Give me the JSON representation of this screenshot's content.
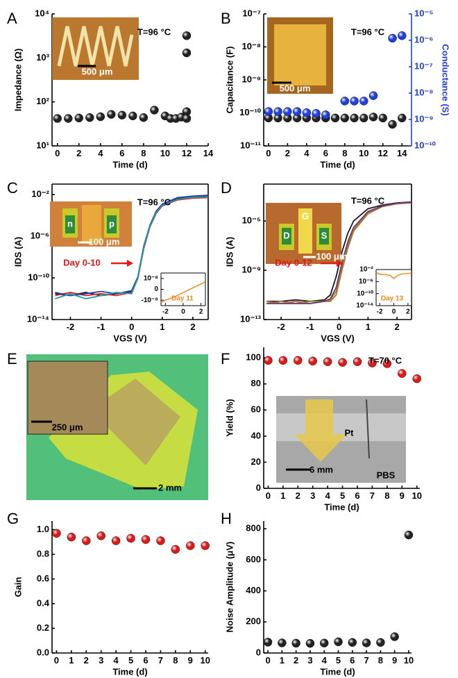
{
  "chart_data": [
    {
      "type": "scatter",
      "panel_label": "A",
      "xlabel": "Time (d)",
      "ylabel": "Impedance (Ω)",
      "annotations": [
        "T=96 °C",
        "500 μm"
      ],
      "log_y": true,
      "xlim": [
        -0.5,
        14
      ],
      "xticks": [
        0,
        2,
        4,
        6,
        8,
        10,
        12,
        14
      ],
      "ylim": [
        10,
        10000
      ],
      "yticks": [
        {
          "value": 10,
          "label": "10¹"
        },
        {
          "value": 100,
          "label": "10²"
        },
        {
          "value": 1000,
          "label": "10³"
        },
        {
          "value": 10000,
          "label": "10⁴"
        }
      ],
      "series": [
        {
          "color": "#222222",
          "x": [
            0,
            1,
            2,
            3,
            4,
            5,
            6,
            7,
            8,
            9,
            10,
            10.5,
            11,
            11.5,
            12,
            12,
            12,
            12
          ],
          "values": [
            42,
            42,
            43,
            44,
            46,
            52,
            50,
            48,
            44,
            65,
            48,
            42,
            42,
            45,
            60,
            42,
            3200,
            1300
          ]
        }
      ]
    },
    {
      "type": "scatter",
      "panel_label": "B",
      "xlabel": "Time (d)",
      "ylabel": "Capacitance (F)",
      "y2label": "Conductance (S)",
      "annotations": [
        "T=96 °C",
        "500 μm"
      ],
      "log_y": true,
      "log_y2": true,
      "xlim": [
        -0.5,
        15
      ],
      "xticks": [
        0,
        2,
        4,
        6,
        8,
        10,
        12,
        14
      ],
      "ylim": [
        1e-11,
        1e-07
      ],
      "yticks": [
        {
          "value": 1e-11,
          "label": "10⁻¹¹"
        },
        {
          "value": 1e-10,
          "label": "10⁻¹⁰"
        },
        {
          "value": 1e-09,
          "label": "10⁻⁹"
        },
        {
          "value": 1e-08,
          "label": "10⁻⁸"
        },
        {
          "value": 1e-07,
          "label": "10⁻⁷"
        }
      ],
      "y2lim": [
        1e-10,
        1e-05
      ],
      "y2ticks": [
        {
          "value": 1e-10,
          "label": "10⁻¹⁰"
        },
        {
          "value": 1e-09,
          "label": "10⁻⁹"
        },
        {
          "value": 1e-08,
          "label": "10⁻⁸"
        },
        {
          "value": 1e-07,
          "label": "10⁻⁷"
        },
        {
          "value": 1e-06,
          "label": "10⁻⁶"
        },
        {
          "value": 1e-05,
          "label": "10⁻⁵"
        }
      ],
      "y2color": "#1f3fe0",
      "series": [
        {
          "color": "#222222",
          "x": [
            0,
            1,
            2,
            3,
            4,
            5,
            6,
            7,
            8,
            9,
            10,
            11,
            12,
            13,
            14
          ],
          "values": [
            7e-11,
            7e-11,
            7e-11,
            7e-11,
            7e-11,
            7e-11,
            7e-11,
            7e-11,
            7e-11,
            7e-11,
            7e-11,
            7.5e-11,
            7e-11,
            4.5e-11,
            7e-11
          ]
        },
        {
          "color": "#1f3fe0",
          "axis": "y2",
          "x": [
            0,
            1,
            2,
            3,
            4,
            5,
            6,
            8,
            9,
            10,
            11,
            13,
            14
          ],
          "values": [
            2e-09,
            2e-09,
            2e-09,
            2e-09,
            1.8e-09,
            1.7e-09,
            1.5e-09,
            5e-09,
            5e-09,
            5e-09,
            8e-09,
            1.2e-06,
            1.5e-06
          ]
        }
      ]
    },
    {
      "type": "line",
      "panel_label": "C",
      "xlabel": "VGS (V)",
      "ylabel": "IDS (A)",
      "annotations": [
        "T=96 °C",
        "Day 0-10",
        "100 μm",
        "n",
        "p"
      ],
      "log_y": true,
      "xlim": [
        -2.6,
        2.5
      ],
      "xticks": [
        -2,
        -1,
        0,
        1,
        2
      ],
      "ylim": [
        1e-14,
        0.1
      ],
      "yticks": [
        {
          "value": 1e-14,
          "label": "10⁻¹⁴"
        },
        {
          "value": 1e-10,
          "label": "10⁻¹⁰"
        },
        {
          "value": 1e-06,
          "label": "10⁻⁶"
        },
        {
          "value": 0.01,
          "label": "10⁻²"
        }
      ],
      "x": [
        -2.5,
        -2,
        -1.5,
        -1,
        -0.5,
        0,
        0.2,
        0.4,
        0.6,
        0.8,
        1,
        1.5,
        2,
        2.5
      ],
      "series": [
        {
          "color": "#1a1a1a",
          "values": [
            3e-12,
            2e-12,
            4e-12,
            2e-12,
            3e-12,
            5e-12,
            1e-10,
            1e-07,
            1e-05,
            0.0002,
            0.001,
            0.004,
            0.006,
            0.007
          ]
        },
        {
          "color": "#d62828",
          "values": [
            2e-12,
            4e-12,
            2e-12,
            3e-12,
            2e-12,
            4e-12,
            8e-11,
            7e-08,
            8e-06,
            0.00015,
            0.0008,
            0.003,
            0.0045,
            0.005
          ]
        },
        {
          "color": "#2040c0",
          "values": [
            4e-12,
            2e-12,
            3e-12,
            5e-12,
            3e-12,
            6e-12,
            1.2e-10,
            1.3e-07,
            1.2e-05,
            0.00025,
            0.0012,
            0.005,
            0.007,
            0.0085
          ]
        },
        {
          "color": "#2a9a9a",
          "values": [
            1e-12,
            3e-12,
            1e-12,
            2e-12,
            4e-12,
            3e-12,
            9e-11,
            9e-08,
            9e-06,
            0.00018,
            0.0009,
            0.0035,
            0.0055,
            0.006
          ]
        }
      ]
    },
    {
      "type": "line",
      "annotations": [
        "Day 11"
      ],
      "xlim": [
        -2.5,
        2.5
      ],
      "xticks": [
        -2,
        0,
        2
      ],
      "ylim": [
        -1.5e-08,
        1.5e-08
      ],
      "yticks": [
        {
          "value": -1e-08,
          "label": "-10⁻⁸"
        },
        0,
        {
          "value": 1e-08,
          "label": "10⁻⁸"
        }
      ],
      "x": [
        -2.5,
        -2,
        -1,
        0,
        1,
        2,
        2.5
      ],
      "series": [
        {
          "color": "#f08a1c",
          "values": [
            -1.2e-08,
            -1e-08,
            -7e-09,
            -3e-09,
            1e-09,
            5e-09,
            7e-09
          ]
        }
      ]
    },
    {
      "type": "line",
      "panel_label": "D",
      "xlabel": "VGS (V)",
      "ylabel": "IDS (A)",
      "annotations": [
        "T=96 °C",
        "Day 0-12",
        "100 μm",
        "G",
        "D",
        "S"
      ],
      "log_y": true,
      "xlim": [
        -2.6,
        2.5
      ],
      "xticks": [
        -2,
        -1,
        0,
        1,
        2
      ],
      "ylim": [
        1e-13,
        0.01
      ],
      "yticks": [
        {
          "value": 1e-13,
          "label": "10⁻¹³"
        },
        {
          "value": 1e-09,
          "label": "10⁻⁹"
        },
        {
          "value": 1e-05,
          "label": "10⁻⁵"
        }
      ],
      "x": [
        -2.5,
        -2,
        -1.5,
        -1,
        -0.5,
        -0.3,
        -0.1,
        0.1,
        0.3,
        0.5,
        1,
        1.5,
        2,
        2.5
      ],
      "series": [
        {
          "color": "#1a1a1a",
          "values": [
            3e-12,
            3e-12,
            4e-12,
            3e-12,
            4e-12,
            1e-11,
            3e-10,
            3e-08,
            1e-06,
            1e-05,
            0.0001,
            0.0002,
            0.0003,
            0.00035
          ]
        },
        {
          "color": "#8a8a2a",
          "values": [
            2e-12,
            3e-12,
            2e-12,
            3e-12,
            3e-12,
            4e-12,
            2e-11,
            2e-09,
            1e-07,
            2e-06,
            5e-05,
            0.00016,
            0.00027,
            0.00032
          ]
        },
        {
          "color": "#c06a2a",
          "values": [
            3e-12,
            2e-12,
            3e-12,
            2e-12,
            3e-12,
            3e-12,
            1e-11,
            1e-09,
            6e-08,
            1.5e-06,
            4e-05,
            0.00015,
            0.00025,
            0.0003
          ]
        },
        {
          "color": "#6a3a8a",
          "values": [
            2e-12,
            2e-12,
            2e-12,
            2e-12,
            3e-12,
            5e-12,
            4e-11,
            4e-09,
            2e-07,
            3e-06,
            6e-05,
            0.00017,
            0.00028,
            0.00033
          ]
        }
      ]
    },
    {
      "type": "line",
      "annotations": [
        "Day 13"
      ],
      "log_y": true,
      "xlim": [
        -2.5,
        2.5
      ],
      "xticks": [
        -2,
        0,
        2
      ],
      "ylim": [
        1e-14,
        0.01
      ],
      "yticks": [
        {
          "value": 1e-14,
          "label": "10⁻¹⁴"
        },
        {
          "value": 1e-10,
          "label": "10⁻¹⁰"
        },
        {
          "value": 1e-06,
          "label": "10⁻⁶"
        },
        {
          "value": 0.01,
          "label": "10⁻²"
        }
      ],
      "x": [
        -2.5,
        -2,
        -1.5,
        -1,
        -0.5,
        0,
        0.5,
        1,
        1.5,
        2,
        2.5
      ],
      "series": [
        {
          "color": "#f08a1c",
          "values": [
            0.001,
            0.0003,
            0.0002,
            0.0002,
            0.0001,
            1e-05,
            0.0001,
            0.0003,
            0.0004,
            0.0005,
            0.0006
          ]
        }
      ]
    },
    {
      "type": "image",
      "panel_label": "E",
      "annotations": [
        "250 μm",
        "2 mm"
      ]
    },
    {
      "type": "scatter",
      "panel_label": "F",
      "xlabel": "Time (d)",
      "ylabel": "Yield (%)",
      "annotations": [
        "T=70 °C",
        "Pt",
        "PBS",
        "6 mm"
      ],
      "xlim": [
        -0.3,
        10.2
      ],
      "xticks": [
        0,
        1,
        2,
        3,
        4,
        5,
        6,
        7,
        8,
        9,
        10
      ],
      "ylim": [
        0,
        108
      ],
      "yticks": [
        0,
        20,
        40,
        60,
        80,
        100
      ],
      "series": [
        {
          "color": "#e01818",
          "x": [
            0,
            1,
            2,
            3,
            4,
            5,
            6,
            7,
            8,
            9,
            10
          ],
          "values": [
            98,
            98,
            98,
            97.5,
            97,
            96.5,
            97,
            96,
            95.5,
            88,
            84
          ]
        }
      ]
    },
    {
      "type": "scatter",
      "panel_label": "G",
      "xlabel": "Time (d)",
      "ylabel": "Gain",
      "xlim": [
        -0.3,
        10.2
      ],
      "xticks": [
        0,
        1,
        2,
        3,
        4,
        5,
        6,
        7,
        8,
        9,
        10
      ],
      "ylim": [
        0,
        1.07
      ],
      "yticks": [
        {
          "value": 0,
          "label": "0.0"
        },
        0.2,
        0.4,
        0.6,
        0.8,
        {
          "value": 1,
          "label": "1.0"
        }
      ],
      "series": [
        {
          "color": "#e01818",
          "x": [
            0,
            1,
            2,
            3,
            4,
            5,
            6,
            7,
            8,
            9,
            10
          ],
          "values": [
            0.97,
            0.94,
            0.91,
            0.95,
            0.91,
            0.93,
            0.92,
            0.91,
            0.84,
            0.87,
            0.87
          ]
        }
      ]
    },
    {
      "type": "scatter",
      "panel_label": "H",
      "xlabel": "Time (d)",
      "ylabel": "Noise Amplitude (μV)",
      "xlim": [
        -0.3,
        10.2
      ],
      "xticks": [
        0,
        1,
        2,
        3,
        4,
        5,
        6,
        7,
        8,
        9,
        10
      ],
      "ylim": [
        0,
        850
      ],
      "yticks": [
        0,
        200,
        400,
        600,
        800
      ],
      "series": [
        {
          "color": "#222222",
          "x": [
            0,
            1,
            2,
            3,
            4,
            5,
            6,
            7,
            8,
            9,
            10
          ],
          "values": [
            70,
            65,
            63,
            62,
            64,
            72,
            68,
            65,
            68,
            105,
            760
          ]
        }
      ]
    }
  ]
}
